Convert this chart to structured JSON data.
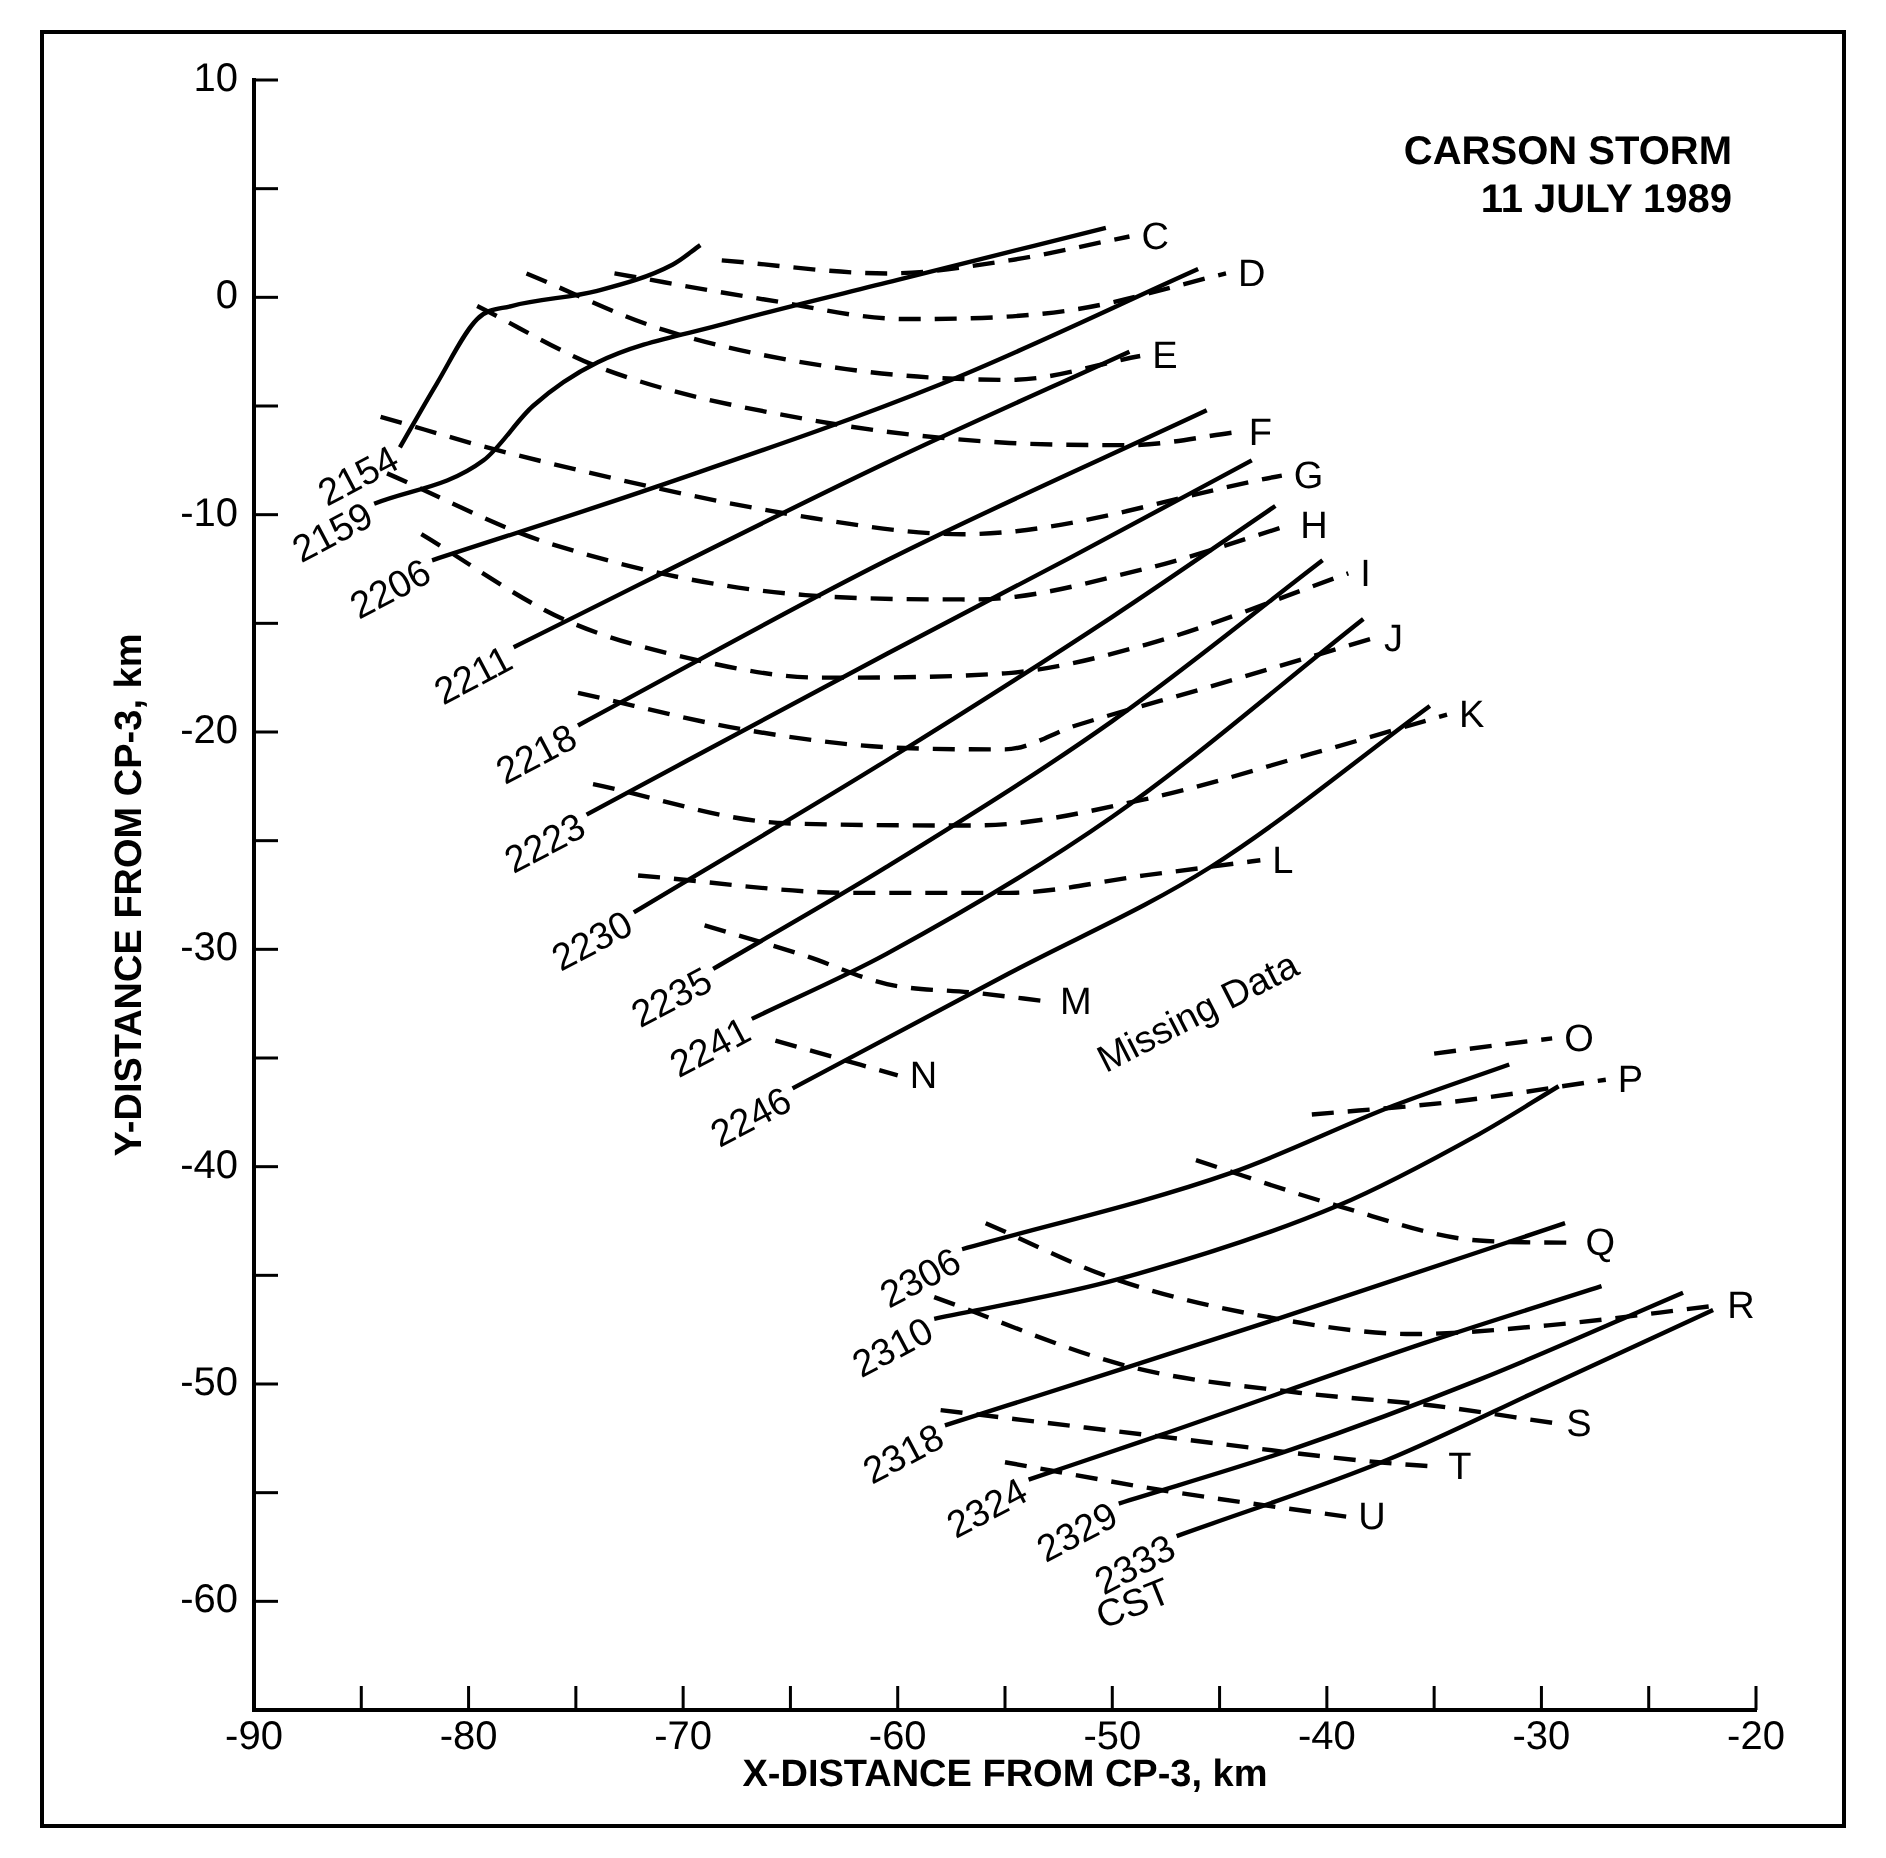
{
  "chart_data": {
    "type": "line",
    "title": "CARSON STORM",
    "subtitle": "11 JULY 1989",
    "xlabel": "X-DISTANCE FROM CP-3, km",
    "ylabel": "Y-DISTANCE FROM CP-3, km",
    "xlim": [
      -90,
      -20
    ],
    "ylim": [
      -65,
      10
    ],
    "xticks": [
      -90,
      {
        "value": -85,
        "label": null
      },
      -80,
      {
        "value": -75,
        "label": null
      },
      -70,
      {
        "value": -65,
        "label": null
      },
      -60,
      {
        "value": -55,
        "label": null
      },
      -50,
      {
        "value": -45,
        "label": null
      },
      -40,
      {
        "value": -35,
        "label": null
      },
      -30,
      {
        "value": -25,
        "label": null
      },
      -20
    ],
    "yticks": [
      10,
      {
        "value": 5,
        "label": null
      },
      0,
      {
        "value": -5,
        "label": null
      },
      -10,
      {
        "value": -15,
        "label": null
      },
      -20,
      {
        "value": -25,
        "label": null
      },
      -30,
      {
        "value": -35,
        "label": null
      },
      -40,
      {
        "value": -45,
        "label": null
      },
      -50,
      {
        "value": -55,
        "label": null
      },
      -60
    ],
    "annotations": [
      "Missing Data",
      "CST"
    ],
    "series": [
      {
        "name": "2154",
        "color": "#000000",
        "line_style": "solid",
        "x": [
          -83.2,
          -81.5,
          -79.6,
          -78,
          -74,
          -70.5,
          -69.2
        ],
        "values": [
          -6.9,
          -4,
          -1,
          -0.4,
          0.3,
          1.5,
          2.4
        ]
      },
      {
        "name": "2159",
        "color": "#000000",
        "line_style": "solid",
        "x": [
          -84.4,
          -79.3,
          -77,
          -74,
          -68,
          -60,
          -50.3
        ],
        "values": [
          -9.5,
          -7.5,
          -5,
          -3,
          -1.2,
          0.8,
          3.2
        ]
      },
      {
        "name": "2206",
        "color": "#000000",
        "line_style": "solid",
        "x": [
          -81.7,
          -71.2,
          -58,
          -46
        ],
        "values": [
          -12.1,
          -8.7,
          -4,
          1.3
        ]
      },
      {
        "name": "2211",
        "color": "#000000",
        "line_style": "solid",
        "x": [
          -77.9,
          -60.5,
          -49.2
        ],
        "values": [
          -16.1,
          -7.6,
          -2.5
        ]
      },
      {
        "name": "2218",
        "color": "#000000",
        "line_style": "solid",
        "x": [
          -74.9,
          -60.5,
          -45.6
        ],
        "values": [
          -19.7,
          -12.1,
          -5.2
        ]
      },
      {
        "name": "2223",
        "color": "#000000",
        "line_style": "solid",
        "x": [
          -74.5,
          -60.5,
          -52,
          -43.5
        ],
        "values": [
          -23.8,
          -16.4,
          -12,
          -7.5
        ]
      },
      {
        "name": "2230",
        "color": "#000000",
        "line_style": "solid",
        "x": [
          -72.3,
          -60.5,
          -50,
          -42.4
        ],
        "values": [
          -28.3,
          -21.3,
          -14.7,
          -9.6
        ]
      },
      {
        "name": "2235",
        "color": "#000000",
        "line_style": "solid",
        "x": [
          -68.6,
          -60.5,
          -50,
          -40.2
        ],
        "values": [
          -30.9,
          -26.2,
          -19.5,
          -12.1
        ]
      },
      {
        "name": "2241",
        "color": "#000000",
        "line_style": "solid",
        "x": [
          -66.8,
          -60.5,
          -50,
          -38.3
        ],
        "values": [
          -33.2,
          -30.2,
          -23.9,
          -14.8
        ]
      },
      {
        "name": "2246",
        "color": "#000000",
        "line_style": "solid",
        "x": [
          -64.9,
          -54.8,
          -45.4,
          -35.2
        ],
        "values": [
          -36.4,
          -31.1,
          -26.2,
          -18.8
        ]
      },
      {
        "name": "2306",
        "color": "#000000",
        "line_style": "solid",
        "x": [
          -57,
          -44.5,
          -36.9,
          -31.5
        ],
        "values": [
          -43.8,
          -40.3,
          -37.2,
          -35.3
        ]
      },
      {
        "name": "2310",
        "color": "#000000",
        "line_style": "solid",
        "x": [
          -58.3,
          -49.8,
          -39.5,
          -32.9,
          -29.2
        ],
        "values": [
          -47,
          -45.2,
          -41.8,
          -38.5,
          -36.3
        ]
      },
      {
        "name": "2318",
        "color": "#000000",
        "line_style": "solid",
        "x": [
          -57.8,
          -49.2,
          -42.3,
          -28.9
        ],
        "values": [
          -51.9,
          -49.2,
          -47,
          -42.6
        ]
      },
      {
        "name": "2324",
        "color": "#000000",
        "line_style": "solid",
        "x": [
          -53.9,
          -47.9,
          -35.4,
          -27.2
        ],
        "values": [
          -54.4,
          -52.4,
          -48.1,
          -45.5
        ]
      },
      {
        "name": "2329",
        "color": "#000000",
        "line_style": "solid",
        "x": [
          -49.7,
          -41.6,
          -32.9,
          -23.4
        ],
        "values": [
          -55.5,
          -53,
          -49.8,
          -45.8
        ]
      },
      {
        "name": "2333",
        "color": "#000000",
        "line_style": "solid",
        "x": [
          -47,
          -37.2,
          -29.7,
          -22
        ],
        "values": [
          -57,
          -53.5,
          -50.1,
          -46.6
        ]
      },
      {
        "name": "C",
        "color": "#000000",
        "line_style": "dashed",
        "x": [
          -68.2,
          -60.5,
          -54.8,
          -49.2
        ],
        "values": [
          1.7,
          1.1,
          1.7,
          2.8
        ]
      },
      {
        "name": "D",
        "color": "#000000",
        "line_style": "dashed",
        "x": [
          -73.2,
          -66.2,
          -59.6,
          -52,
          -44.7
        ],
        "values": [
          1.1,
          -0.1,
          -1,
          -0.6,
          1.1
        ]
      },
      {
        "name": "E",
        "color": "#000000",
        "line_style": "dashed",
        "x": [
          -77.3,
          -70.9,
          -62.4,
          -54.8,
          -48.7
        ],
        "values": [
          1.1,
          -1.5,
          -3.3,
          -3.8,
          -2.7
        ]
      },
      {
        "name": "F",
        "color": "#000000",
        "line_style": "dashed",
        "x": [
          -79.6,
          -73.7,
          -64.3,
          -54.8,
          -49.2,
          -44.2
        ],
        "values": [
          -0.4,
          -3.3,
          -5.6,
          -6.7,
          -6.8,
          -6.2
        ]
      },
      {
        "name": "G",
        "color": "#000000",
        "line_style": "dashed",
        "x": [
          -84.1,
          -78,
          -64.3,
          -57,
          -42.1
        ],
        "values": [
          -5.5,
          -7.2,
          -10.1,
          -10.9,
          -8.2
        ]
      },
      {
        "name": "H",
        "color": "#000000",
        "line_style": "dashed",
        "x": [
          -83.8,
          -76.3,
          -64.3,
          -56.4,
          -48.5,
          -41.8
        ],
        "values": [
          -8.1,
          -11.3,
          -13.7,
          -13.9,
          -12.5,
          -10.5
        ]
      },
      {
        "name": "I",
        "color": "#000000",
        "line_style": "dashed",
        "x": [
          -82.2,
          -75.6,
          -69.3,
          -63.6,
          -55,
          -48.5,
          -39
        ],
        "values": [
          -10.9,
          -14.8,
          -16.7,
          -17.5,
          -17.3,
          -16,
          -12.7
        ]
      },
      {
        "name": "J",
        "color": "#000000",
        "line_style": "dashed",
        "x": [
          -74.9,
          -67.1,
          -60.5,
          -55,
          -51.7,
          -45.4,
          -37.9
        ],
        "values": [
          -18.2,
          -19.9,
          -20.7,
          -20.8,
          -19.7,
          -17.9,
          -15.7
        ]
      },
      {
        "name": "K",
        "color": "#000000",
        "line_style": "dashed",
        "x": [
          -74.2,
          -65.2,
          -56.4,
          -48.5,
          -40.7,
          -34.4
        ],
        "values": [
          -22.4,
          -24.2,
          -24.3,
          -23.1,
          -21,
          -19.2
        ]
      },
      {
        "name": "L",
        "color": "#000000",
        "line_style": "dashed",
        "x": [
          -72.1,
          -62.1,
          -54.8,
          -48.5,
          -43.1
        ],
        "values": [
          -26.6,
          -27.4,
          -27.4,
          -26.6,
          -25.9
        ]
      },
      {
        "name": "M",
        "color": "#000000",
        "line_style": "dashed",
        "x": [
          -69,
          -64.3,
          -60.5,
          -56.4,
          -53
        ],
        "values": [
          -28.9,
          -30.3,
          -31.6,
          -32,
          -32.4
        ]
      },
      {
        "name": "N",
        "color": "#000000",
        "line_style": "dashed",
        "x": [
          -65.7,
          -60
        ],
        "values": [
          -34.2,
          -35.8
        ]
      },
      {
        "name": "O",
        "color": "#000000",
        "line_style": "dashed",
        "x": [
          -35,
          -32,
          -29.5
        ],
        "values": [
          -34.8,
          -34.4,
          -34.1
        ]
      },
      {
        "name": "P",
        "color": "#000000",
        "line_style": "dashed",
        "x": [
          -40.7,
          -34,
          -27
        ],
        "values": [
          -37.6,
          -37,
          -36
        ]
      },
      {
        "name": "Q",
        "color": "#000000",
        "line_style": "dashed",
        "x": [
          -46.1,
          -39.5,
          -32.9,
          -28.5
        ],
        "values": [
          -39.7,
          -41.8,
          -43.4,
          -43.5
        ]
      },
      {
        "name": "R",
        "color": "#000000",
        "line_style": "dashed",
        "x": [
          -55.9,
          -49.8,
          -42.3,
          -36,
          -29.7,
          -21.9
        ],
        "values": [
          -42.6,
          -45.2,
          -47,
          -47.7,
          -47.3,
          -46.4
        ]
      },
      {
        "name": "S",
        "color": "#000000",
        "line_style": "dashed",
        "x": [
          -58.3,
          -49.2,
          -41.3,
          -35,
          -29.4
        ],
        "values": [
          -46,
          -49.2,
          -50.4,
          -51,
          -51.8
        ]
      },
      {
        "name": "T",
        "color": "#000000",
        "line_style": "dashed",
        "x": [
          -58,
          -47.9,
          -37.6,
          -34.9
        ],
        "values": [
          -51.2,
          -52.4,
          -53.6,
          -53.8
        ]
      },
      {
        "name": "U",
        "color": "#000000",
        "line_style": "dashed",
        "x": [
          -55,
          -47.6,
          -43.5,
          -39.1
        ],
        "values": [
          -53.6,
          -54.9,
          -55.5,
          -56.1
        ]
      }
    ]
  }
}
